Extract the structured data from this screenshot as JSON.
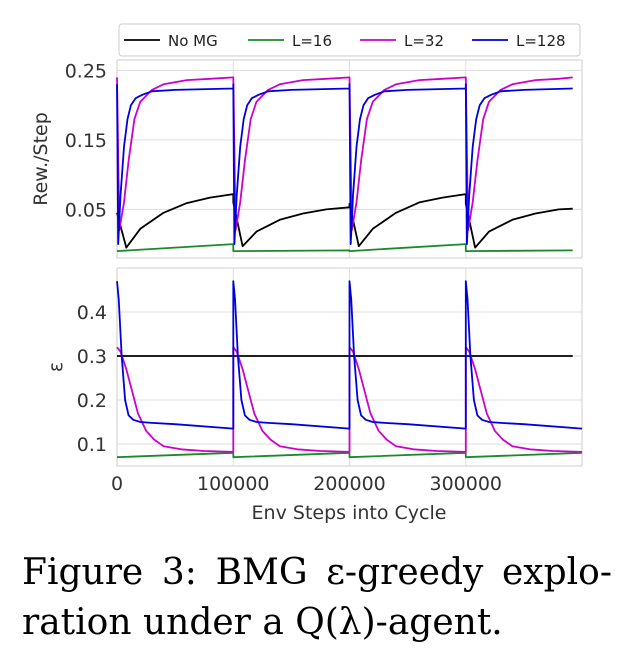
{
  "chart_data": [
    {
      "type": "line",
      "ylabel": "Rew./Step",
      "xlabel": "",
      "xlim": [
        0,
        400000
      ],
      "ylim": [
        -0.02,
        0.265
      ],
      "yticks": [
        0.05,
        0.15,
        0.25
      ],
      "ytick_labels": [
        "0.05",
        "0.15",
        "0.25"
      ],
      "grid": true,
      "legend": {
        "placement": "top",
        "entries": [
          {
            "name": "No MG",
            "color": "#000000"
          },
          {
            "name": "L=16",
            "color": "#1a8a2a"
          },
          {
            "name": "L=32",
            "color": "#cc00cc"
          },
          {
            "name": "L=128",
            "color": "#0000dd"
          }
        ]
      },
      "cycle_boundaries": [
        100000,
        200000,
        300000
      ],
      "series": [
        {
          "name": "No MG",
          "color": "#000000",
          "x": [
            0,
            8000,
            20000,
            40000,
            60000,
            80000,
            100000,
            100000,
            108000,
            120000,
            140000,
            160000,
            180000,
            200000,
            200000,
            208000,
            220000,
            240000,
            260000,
            280000,
            300000,
            300000,
            308000,
            320000,
            340000,
            360000,
            380000,
            392000
          ],
          "y": [
            0.045,
            -0.005,
            0.022,
            0.045,
            0.059,
            0.067,
            0.072,
            0.06,
            -0.003,
            0.018,
            0.035,
            0.044,
            0.05,
            0.053,
            0.058,
            -0.003,
            0.022,
            0.045,
            0.06,
            0.067,
            0.072,
            0.058,
            -0.005,
            0.018,
            0.035,
            0.044,
            0.05,
            0.051
          ]
        },
        {
          "name": "L=16",
          "color": "#1a8a2a",
          "x": [
            0,
            100000,
            100000,
            200000,
            200000,
            300000,
            300000,
            392000
          ],
          "y": [
            -0.01,
            0.0,
            -0.01,
            -0.009,
            -0.01,
            0.0,
            -0.01,
            -0.009
          ]
        },
        {
          "name": "L=32",
          "color": "#cc00cc",
          "x": [
            0,
            2000,
            6000,
            10000,
            15000,
            20000,
            30000,
            40000,
            60000,
            80000,
            100000,
            100000,
            102000,
            106000,
            110000,
            115000,
            120000,
            130000,
            140000,
            160000,
            180000,
            200000,
            200000,
            202000,
            206000,
            210000,
            215000,
            220000,
            230000,
            240000,
            260000,
            280000,
            300000,
            300000,
            302000,
            306000,
            310000,
            315000,
            320000,
            330000,
            340000,
            360000,
            380000,
            392000
          ],
          "y": [
            0.24,
            0.02,
            0.06,
            0.12,
            0.18,
            0.205,
            0.222,
            0.23,
            0.236,
            0.238,
            0.24,
            0.24,
            0.02,
            0.06,
            0.12,
            0.18,
            0.205,
            0.222,
            0.23,
            0.236,
            0.238,
            0.24,
            0.24,
            0.02,
            0.06,
            0.12,
            0.18,
            0.205,
            0.222,
            0.23,
            0.236,
            0.238,
            0.24,
            0.24,
            0.02,
            0.06,
            0.12,
            0.18,
            0.205,
            0.222,
            0.23,
            0.236,
            0.238,
            0.24
          ]
        },
        {
          "name": "L=128",
          "color": "#0000dd",
          "x": [
            0,
            1000,
            3000,
            6000,
            9000,
            12000,
            16000,
            22000,
            30000,
            50000,
            100000,
            100000,
            101000,
            103000,
            106000,
            109000,
            112000,
            116000,
            122000,
            130000,
            150000,
            200000,
            200000,
            201000,
            203000,
            206000,
            209000,
            212000,
            216000,
            222000,
            230000,
            250000,
            300000,
            300000,
            301000,
            303000,
            306000,
            309000,
            312000,
            316000,
            322000,
            330000,
            350000,
            392000
          ],
          "y": [
            0.23,
            0.0,
            0.07,
            0.14,
            0.18,
            0.2,
            0.21,
            0.215,
            0.22,
            0.222,
            0.224,
            0.23,
            0.0,
            0.07,
            0.14,
            0.18,
            0.2,
            0.21,
            0.215,
            0.22,
            0.222,
            0.224,
            0.23,
            0.0,
            0.07,
            0.14,
            0.18,
            0.2,
            0.21,
            0.215,
            0.22,
            0.222,
            0.224,
            0.23,
            0.0,
            0.07,
            0.14,
            0.18,
            0.2,
            0.21,
            0.215,
            0.22,
            0.222,
            0.224
          ]
        }
      ]
    },
    {
      "type": "line",
      "ylabel": "ε",
      "xlabel": "Env Steps into Cycle",
      "xlim": [
        0,
        400000
      ],
      "ylim": [
        0.05,
        0.5
      ],
      "yticks": [
        0.1,
        0.2,
        0.3,
        0.4
      ],
      "ytick_labels": [
        "0.1",
        "0.2",
        "0.3",
        "0.4"
      ],
      "xticks": [
        0,
        100000,
        200000,
        300000
      ],
      "xtick_labels": [
        "0",
        "100000",
        "200000",
        "300000"
      ],
      "grid": true,
      "cycle_boundaries": [
        100000,
        200000,
        300000
      ],
      "series": [
        {
          "name": "No MG",
          "color": "#000000",
          "x": [
            0,
            392000
          ],
          "y": [
            0.3,
            0.3
          ]
        },
        {
          "name": "L=16",
          "color": "#1a8a2a",
          "x": [
            0,
            100000,
            100000,
            200000,
            200000,
            300000,
            300000,
            400000
          ],
          "y": [
            0.07,
            0.08,
            0.07,
            0.08,
            0.07,
            0.08,
            0.07,
            0.08
          ]
        },
        {
          "name": "L=32",
          "color": "#cc00cc",
          "x": [
            0,
            3000,
            8000,
            13000,
            18000,
            25000,
            32000,
            40000,
            55000,
            75000,
            100000,
            100000,
            103000,
            108000,
            113000,
            118000,
            125000,
            132000,
            140000,
            155000,
            175000,
            200000,
            200000,
            203000,
            208000,
            213000,
            218000,
            225000,
            232000,
            240000,
            255000,
            275000,
            300000,
            300000,
            303000,
            308000,
            313000,
            318000,
            325000,
            332000,
            340000,
            355000,
            375000,
            400000
          ],
          "y": [
            0.32,
            0.31,
            0.27,
            0.22,
            0.17,
            0.13,
            0.11,
            0.095,
            0.088,
            0.084,
            0.082,
            0.32,
            0.31,
            0.27,
            0.22,
            0.17,
            0.13,
            0.11,
            0.095,
            0.088,
            0.084,
            0.082,
            0.32,
            0.31,
            0.27,
            0.22,
            0.17,
            0.13,
            0.11,
            0.095,
            0.088,
            0.084,
            0.082,
            0.32,
            0.31,
            0.27,
            0.22,
            0.17,
            0.13,
            0.11,
            0.095,
            0.088,
            0.084,
            0.082
          ]
        },
        {
          "name": "L=128",
          "color": "#0000dd",
          "x": [
            0,
            1500,
            4000,
            7000,
            10000,
            14000,
            20000,
            30000,
            50000,
            100000,
            100000,
            101500,
            104000,
            107000,
            110000,
            114000,
            120000,
            130000,
            150000,
            200000,
            200000,
            201500,
            204000,
            207000,
            210000,
            214000,
            220000,
            230000,
            250000,
            300000,
            300000,
            301500,
            304000,
            307000,
            310000,
            314000,
            320000,
            330000,
            350000,
            400000
          ],
          "y": [
            0.47,
            0.43,
            0.3,
            0.2,
            0.165,
            0.155,
            0.15,
            0.148,
            0.145,
            0.135,
            0.47,
            0.43,
            0.3,
            0.2,
            0.165,
            0.155,
            0.15,
            0.148,
            0.145,
            0.135,
            0.47,
            0.43,
            0.3,
            0.2,
            0.165,
            0.155,
            0.15,
            0.148,
            0.145,
            0.135,
            0.47,
            0.43,
            0.3,
            0.2,
            0.165,
            0.155,
            0.15,
            0.148,
            0.145,
            0.135
          ]
        }
      ]
    }
  ],
  "caption": {
    "line1": "Figure 3:  BMG ε-greedy explo-",
    "line2": "ration under a Q(λ)-agent."
  }
}
